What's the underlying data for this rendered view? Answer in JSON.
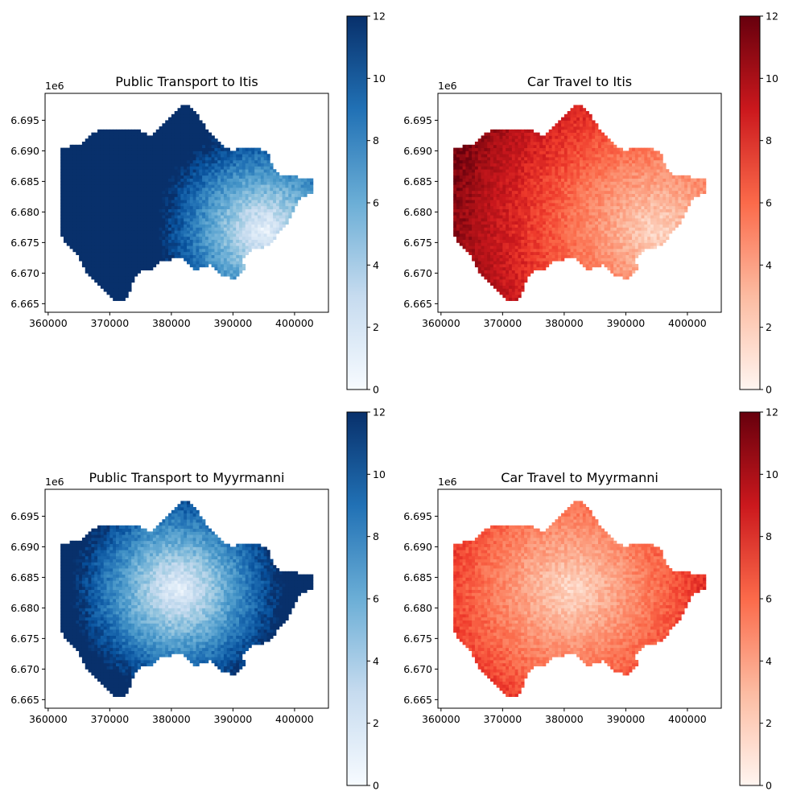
{
  "figure": {
    "panels": [
      {
        "id": "pt-itis",
        "title": "Public Transport to Itis",
        "colormap": "blues",
        "center": [
          395000,
          6677000
        ],
        "mode": "center"
      },
      {
        "id": "car-itis",
        "title": "Car Travel to Itis",
        "colormap": "reds",
        "center": [
          395000,
          6677000
        ],
        "mode": "east"
      },
      {
        "id": "pt-myyrmanni",
        "title": "Public Transport to Myyrmanni",
        "colormap": "blues",
        "center": [
          381000,
          6683000
        ],
        "mode": "center"
      },
      {
        "id": "car-myyrmanni",
        "title": "Car Travel to Myyrmanni",
        "colormap": "reds",
        "center": [
          381000,
          6683000
        ],
        "mode": "center"
      }
    ]
  },
  "axes": {
    "x_ticks": [
      "360000",
      "370000",
      "380000",
      "390000",
      "400000"
    ],
    "x_tick_values": [
      360000,
      370000,
      380000,
      390000,
      400000
    ],
    "y_ticks": [
      "6.665",
      "6.670",
      "6.675",
      "6.680",
      "6.685",
      "6.690",
      "6.695"
    ],
    "y_tick_values": [
      6.665,
      6.67,
      6.675,
      6.68,
      6.685,
      6.69,
      6.695
    ],
    "y_offset_label": "1e6",
    "xlim": [
      359500,
      405500
    ],
    "ylim": [
      6.6636,
      6.6994
    ]
  },
  "colorbar": {
    "ticks": [
      "0",
      "2",
      "4",
      "6",
      "8",
      "10",
      "12"
    ],
    "tick_values": [
      0,
      2,
      4,
      6,
      8,
      10,
      12
    ],
    "range": [
      0,
      12
    ]
  },
  "colors": {
    "blues_low": "#f7fbff",
    "blues_mid": "#6baed6",
    "blues_high": "#08306b",
    "reds_low": "#fff5f0",
    "reds_mid": "#fb6a4a",
    "reds_high": "#67000d"
  }
}
